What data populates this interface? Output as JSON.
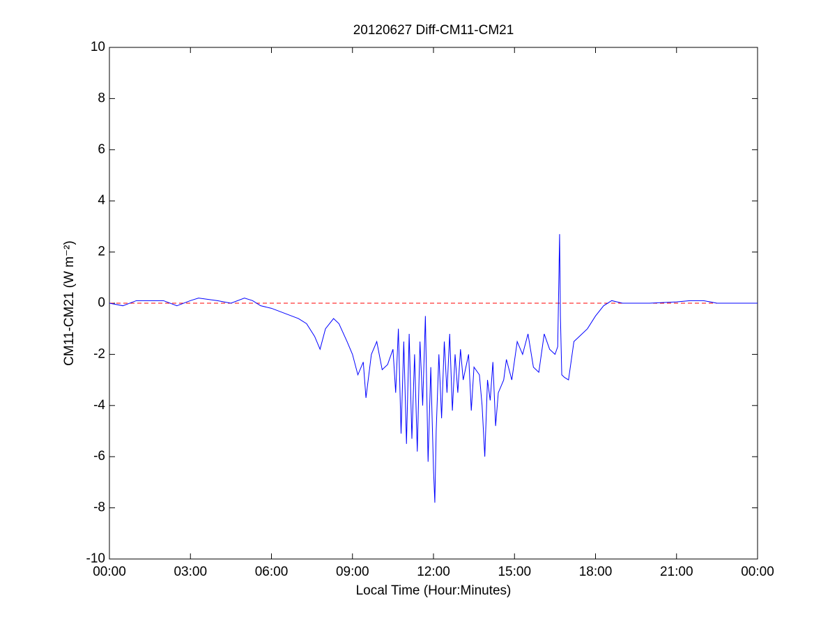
{
  "chart_data": {
    "type": "line",
    "title": "20120627 Diff-CM11-CM21",
    "x_label": "Local Time (Hour:Minutes)",
    "y_label": "CM11-CM21 (W m⁻²)",
    "x": [
      0,
      0.5,
      1,
      2,
      2.5,
      3,
      3.3,
      4,
      4.5,
      5,
      5.3,
      5.6,
      6,
      6.5,
      7,
      7.3,
      7.6,
      7.8,
      8,
      8.3,
      8.5,
      8.8,
      9,
      9.2,
      9.4,
      9.5,
      9.7,
      9.9,
      10.1,
      10.3,
      10.5,
      10.6,
      10.7,
      10.8,
      10.9,
      11,
      11.1,
      11.2,
      11.3,
      11.4,
      11.5,
      11.6,
      11.7,
      11.8,
      11.9,
      12,
      12.05,
      12.1,
      12.2,
      12.3,
      12.4,
      12.5,
      12.6,
      12.7,
      12.8,
      12.9,
      13,
      13.1,
      13.3,
      13.4,
      13.5,
      13.7,
      13.8,
      13.9,
      14,
      14.1,
      14.2,
      14.3,
      14.4,
      14.6,
      14.7,
      14.9,
      15.1,
      15.3,
      15.5,
      15.7,
      15.9,
      16.1,
      16.3,
      16.5,
      16.6,
      16.67,
      16.7,
      16.75,
      16.85,
      17,
      17.2,
      17.4,
      17.7,
      18,
      18.3,
      18.6,
      19,
      19.5,
      20,
      21,
      21.5,
      22,
      22.5,
      23,
      24
    ],
    "series": [
      {
        "color": "#0000ff",
        "values": [
          0,
          -0.1,
          0.1,
          0.1,
          -0.1,
          0.1,
          0.2,
          0.1,
          0,
          0.2,
          0.1,
          -0.1,
          -0.2,
          -0.4,
          -0.6,
          -0.8,
          -1.3,
          -1.8,
          -1,
          -0.6,
          -0.8,
          -1.5,
          -2,
          -2.8,
          -2.3,
          -3.7,
          -2,
          -1.5,
          -2.6,
          -2.4,
          -1.8,
          -3.5,
          -1,
          -5.1,
          -1.5,
          -5.5,
          -1.2,
          -5.3,
          -2,
          -5.8,
          -1.5,
          -4,
          -0.5,
          -6.2,
          -2.5,
          -6.5,
          -7.8,
          -5,
          -2,
          -4.5,
          -1.5,
          -3.5,
          -1.2,
          -4.2,
          -2,
          -3.5,
          -1.8,
          -3,
          -2,
          -4.2,
          -2.5,
          -2.8,
          -4,
          -6,
          -3,
          -3.8,
          -2.3,
          -4.8,
          -3.5,
          -3,
          -2.2,
          -3,
          -1.5,
          -2,
          -1.2,
          -2.5,
          -2.7,
          -1.2,
          -1.8,
          -2,
          -1.7,
          2.7,
          -0.5,
          -2.8,
          -2.9,
          -3,
          -1.5,
          -1.3,
          -1,
          -0.5,
          -0.1,
          0.1,
          0,
          0,
          0,
          0.05,
          0.1,
          0.1,
          0,
          0,
          0
        ]
      }
    ],
    "reference_line": {
      "value": 0,
      "color": "#ff0000"
    },
    "xlim": [
      0,
      24
    ],
    "xticks": [
      {
        "value": 0,
        "label": "00:00"
      },
      {
        "value": 3,
        "label": "03:00"
      },
      {
        "value": 6,
        "label": "06:00"
      },
      {
        "value": 9,
        "label": "09:00"
      },
      {
        "value": 12,
        "label": "12:00"
      },
      {
        "value": 15,
        "label": "15:00"
      },
      {
        "value": 18,
        "label": "18:00"
      },
      {
        "value": 21,
        "label": "21:00"
      },
      {
        "value": 24,
        "label": "00:00"
      }
    ],
    "ylim": [
      -10,
      10
    ],
    "yticks": [
      -10,
      -8,
      -6,
      -4,
      -2,
      0,
      2,
      4,
      6,
      8,
      10
    ],
    "grid": false
  }
}
